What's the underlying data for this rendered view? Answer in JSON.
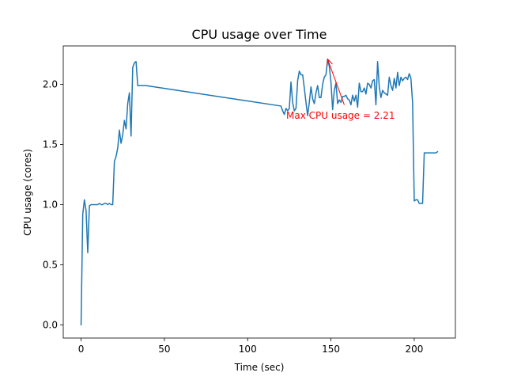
{
  "chart_data": {
    "type": "line",
    "title": "CPU usage over Time",
    "xlabel": "Time (sec)",
    "ylabel": "CPU usage (cores)",
    "xlim": [
      -10.7,
      224.7
    ],
    "ylim": [
      -0.11,
      2.32
    ],
    "xticks": [
      0,
      50,
      100,
      150,
      200
    ],
    "yticks": [
      0.0,
      0.5,
      1.0,
      1.5,
      2.0
    ],
    "xtick_labels": [
      "0",
      "50",
      "100",
      "150",
      "200"
    ],
    "ytick_labels": [
      "0.0",
      "0.5",
      "1.0",
      "1.5",
      "2.0"
    ],
    "grid": false,
    "series": [
      {
        "color": "#1f77b4",
        "x": [
          0,
          1,
          2,
          3,
          4,
          5,
          6,
          7,
          8,
          9,
          10,
          11,
          12,
          13,
          14,
          15,
          16,
          17,
          18,
          19,
          20,
          21,
          22,
          23,
          24,
          25,
          26,
          27,
          28,
          29,
          30,
          31,
          32,
          33,
          34,
          35,
          36,
          37,
          38,
          39,
          120,
          121,
          122,
          123,
          124,
          125,
          126,
          127,
          128,
          129,
          130,
          131,
          132,
          133,
          134,
          135,
          136,
          137,
          138,
          139,
          140,
          141,
          142,
          143,
          144,
          145,
          146,
          147,
          148,
          149,
          150,
          151,
          152,
          153,
          154,
          155,
          156,
          157,
          158,
          159,
          160,
          161,
          162,
          163,
          164,
          165,
          166,
          167,
          168,
          169,
          170,
          171,
          172,
          173,
          174,
          175,
          176,
          177,
          178,
          179,
          180,
          181,
          182,
          183,
          184,
          185,
          186,
          187,
          188,
          189,
          190,
          191,
          192,
          193,
          194,
          195,
          196,
          197,
          198,
          199,
          200,
          201,
          202,
          203,
          204,
          205,
          206,
          207,
          208,
          209,
          210,
          211,
          212,
          213,
          214
        ],
        "y": [
          0.0,
          0.92,
          1.04,
          0.95,
          0.6,
          0.99,
          1.0,
          1.0,
          1.0,
          1.0,
          1.0,
          1.01,
          1.0,
          1.0,
          1.01,
          1.01,
          1.0,
          1.01,
          1.0,
          1.0,
          1.36,
          1.4,
          1.47,
          1.62,
          1.51,
          1.58,
          1.7,
          1.63,
          1.84,
          1.93,
          1.57,
          2.14,
          2.18,
          2.19,
          1.99,
          1.99,
          1.99,
          1.99,
          1.99,
          1.99,
          1.82,
          1.78,
          1.75,
          1.8,
          1.78,
          1.8,
          2.02,
          1.85,
          1.78,
          1.8,
          2.03,
          2.11,
          2.08,
          2.08,
          1.97,
          1.85,
          1.74,
          1.85,
          1.98,
          1.88,
          1.84,
          1.93,
          1.99,
          1.89,
          1.89,
          2.0,
          2.06,
          2.08,
          2.21,
          2.15,
          2.02,
          1.79,
          1.95,
          2.01,
          1.84,
          1.87,
          1.85,
          1.9,
          1.9,
          1.91,
          1.88,
          1.87,
          1.83,
          1.91,
          1.86,
          1.91,
          1.81,
          2.01,
          1.94,
          1.94,
          1.97,
          1.92,
          2.01,
          2.0,
          1.97,
          2.03,
          2.04,
          1.83,
          2.19,
          1.98,
          1.89,
          1.95,
          1.93,
          1.92,
          1.91,
          2.06,
          1.99,
          1.95,
          2.05,
          1.97,
          2.1,
          1.99,
          2.06,
          2.03,
          2.05,
          2.06,
          2.04,
          2.09,
          2.05,
          1.85,
          1.03,
          1.04,
          1.04,
          1.01,
          1.01,
          1.01,
          1.43,
          1.43,
          1.43,
          1.43,
          1.43,
          1.43,
          1.43,
          1.43,
          1.44
        ]
      }
    ],
    "annotations": [
      {
        "text": "Max CPU usage = 2.21",
        "color": "#ff0000",
        "point": [
          148,
          2.21
        ],
        "text_at": [
          158,
          1.83
        ]
      }
    ]
  }
}
